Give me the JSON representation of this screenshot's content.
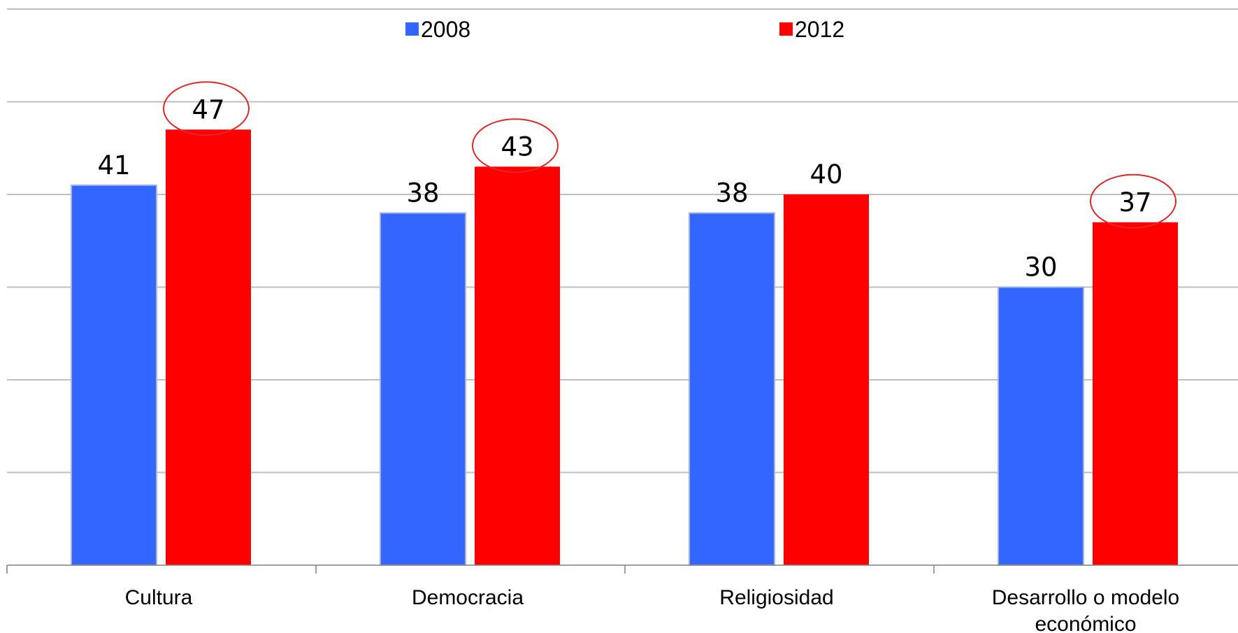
{
  "chart_data": {
    "type": "bar",
    "categories": [
      "Cultura",
      "Democracia",
      "Religiosidad",
      "Desarrollo o modelo económico"
    ],
    "series": [
      {
        "name": "2008",
        "values": [
          41,
          38,
          38,
          30
        ],
        "color": "#3366ff"
      },
      {
        "name": "2012",
        "values": [
          47,
          43,
          40,
          37
        ],
        "color": "#ff0000"
      }
    ],
    "highlighted": [
      {
        "series": "2012",
        "category": "Cultura"
      },
      {
        "series": "2012",
        "category": "Democracia"
      },
      {
        "series": "2012",
        "category": "Desarrollo o modelo económico"
      }
    ],
    "highlight_color": "#e32626",
    "ylim": [
      0,
      60
    ],
    "grid": true,
    "legend_position": "top",
    "title": "",
    "xlabel": "",
    "ylabel": ""
  }
}
